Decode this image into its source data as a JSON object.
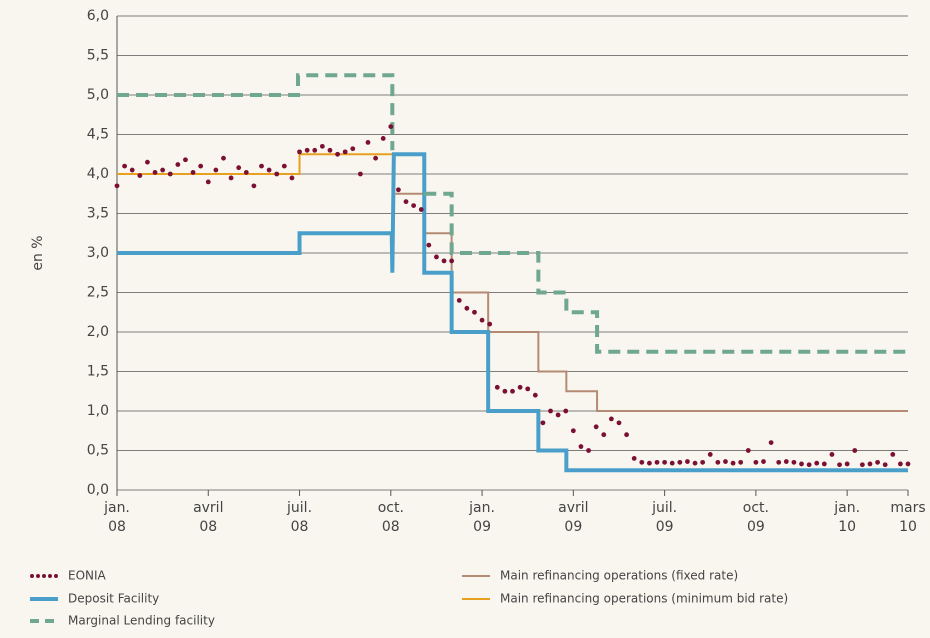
{
  "chart_data": {
    "type": "line",
    "ylabel": "en %",
    "xlim": [
      0,
      26
    ],
    "xticks": [
      {
        "value": 0,
        "label": [
          "jan.",
          "08"
        ]
      },
      {
        "value": 3,
        "label": [
          "avril",
          "08"
        ]
      },
      {
        "value": 6,
        "label": [
          "juil.",
          "08"
        ]
      },
      {
        "value": 9,
        "label": [
          "oct.",
          "08"
        ]
      },
      {
        "value": 12,
        "label": [
          "jan.",
          "09"
        ]
      },
      {
        "value": 15,
        "label": [
          "avril",
          "09"
        ]
      },
      {
        "value": 18,
        "label": [
          "juil.",
          "09"
        ]
      },
      {
        "value": 21,
        "label": [
          "oct.",
          "09"
        ]
      },
      {
        "value": 24,
        "label": [
          "jan.",
          "10"
        ]
      },
      {
        "value": 26,
        "label": [
          "mars",
          "10"
        ]
      }
    ],
    "ylim": [
      0,
      6
    ],
    "yticks": [
      {
        "value": 0,
        "label": "0,0"
      },
      {
        "value": 0.5,
        "label": "0,5"
      },
      {
        "value": 1,
        "label": "1,0"
      },
      {
        "value": 1.5,
        "label": "1,5"
      },
      {
        "value": 2,
        "label": "2,0"
      },
      {
        "value": 2.5,
        "label": "2,5"
      },
      {
        "value": 3,
        "label": "3,0"
      },
      {
        "value": 3.5,
        "label": "3,5"
      },
      {
        "value": 4,
        "label": "4,0"
      },
      {
        "value": 4.5,
        "label": "4,5"
      },
      {
        "value": 5,
        "label": "5,0"
      },
      {
        "value": 5.5,
        "label": "5,5"
      },
      {
        "value": 6,
        "label": "6,0"
      }
    ],
    "grid": true,
    "series": [
      {
        "name": "EONIA",
        "color": "#7b1034",
        "style": "dotted",
        "x": [
          0,
          0.25,
          0.5,
          0.75,
          1,
          1.25,
          1.5,
          1.75,
          2,
          2.25,
          2.5,
          2.75,
          3,
          3.25,
          3.5,
          3.75,
          4,
          4.25,
          4.5,
          4.75,
          5,
          5.25,
          5.5,
          5.75,
          6,
          6.25,
          6.5,
          6.75,
          7,
          7.25,
          7.5,
          7.75,
          8,
          8.25,
          8.5,
          8.75,
          9,
          9.25,
          9.5,
          9.75,
          10,
          10.25,
          10.5,
          10.75,
          11,
          11.25,
          11.5,
          11.75,
          12,
          12.25,
          12.5,
          12.75,
          13,
          13.25,
          13.5,
          13.75,
          14,
          14.25,
          14.5,
          14.75,
          15,
          15.25,
          15.5,
          15.75,
          16,
          16.25,
          16.5,
          16.75,
          17,
          17.25,
          17.5,
          17.75,
          18,
          18.25,
          18.5,
          18.75,
          19,
          19.25,
          19.5,
          19.75,
          20,
          20.25,
          20.5,
          20.75,
          21,
          21.25,
          21.5,
          21.75,
          22,
          22.25,
          22.5,
          22.75,
          23,
          23.25,
          23.5,
          23.75,
          24,
          24.25,
          24.5,
          24.75,
          25,
          25.25,
          25.5,
          25.75,
          26
        ],
        "values": [
          3.85,
          4.1,
          4.05,
          3.98,
          4.15,
          4.02,
          4.05,
          4.0,
          4.12,
          4.18,
          4.02,
          4.1,
          3.9,
          4.05,
          4.2,
          3.95,
          4.08,
          4.02,
          3.85,
          4.1,
          4.05,
          4.0,
          4.1,
          3.95,
          4.28,
          4.3,
          4.3,
          4.35,
          4.3,
          4.25,
          4.28,
          4.32,
          4.0,
          4.4,
          4.2,
          4.45,
          4.6,
          3.8,
          3.65,
          3.6,
          3.55,
          3.1,
          2.95,
          2.9,
          2.9,
          2.4,
          2.3,
          2.25,
          2.15,
          2.1,
          1.3,
          1.25,
          1.25,
          1.3,
          1.28,
          1.2,
          0.85,
          1.0,
          0.95,
          1.0,
          0.75,
          0.55,
          0.5,
          0.8,
          0.7,
          0.9,
          0.85,
          0.7,
          0.4,
          0.35,
          0.34,
          0.35,
          0.35,
          0.34,
          0.35,
          0.36,
          0.34,
          0.35,
          0.45,
          0.35,
          0.36,
          0.34,
          0.35,
          0.5,
          0.35,
          0.36,
          0.6,
          0.35,
          0.36,
          0.35,
          0.33,
          0.32,
          0.34,
          0.33,
          0.45,
          0.32,
          0.33,
          0.5,
          0.32,
          0.33,
          0.35,
          0.32,
          0.45,
          0.33,
          0.33
        ]
      },
      {
        "name": "Deposit Facility",
        "color": "#4a9fca",
        "style": "solid",
        "x": [
          0,
          6,
          6,
          9.03,
          9.05,
          9.1,
          10.1,
          10.1,
          11,
          11,
          12.2,
          12.2,
          13.85,
          13.85,
          14.77,
          14.77,
          26
        ],
        "values": [
          3,
          3,
          3.25,
          3.25,
          2.75,
          4.25,
          4.25,
          2.75,
          2.75,
          2,
          2,
          1,
          1,
          0.5,
          0.5,
          0.25,
          0.25
        ]
      },
      {
        "name": "Marginal Lending facility",
        "color": "#6fa88f",
        "style": "dashed",
        "x": [
          0,
          5.95,
          5.95,
          9.05,
          9.05,
          9.5,
          10.1,
          11,
          11,
          13.85,
          13.85,
          14.77,
          14.77,
          15.78,
          15.78,
          26
        ],
        "values": [
          5,
          5,
          5.25,
          5.25,
          4.3,
          null,
          3.75,
          3.75,
          3,
          3,
          2.5,
          2.5,
          2.25,
          2.25,
          1.75,
          1.75
        ]
      },
      {
        "name": "Main refinancing operations (fixed rate)",
        "color": "#b58a75",
        "style": "thin",
        "x": [
          9.15,
          10.1,
          10.1,
          11,
          11,
          12.2,
          12.2,
          13.85,
          13.85,
          14.77,
          14.77,
          15.78,
          15.78,
          26
        ],
        "values": [
          3.75,
          3.75,
          3.25,
          3.25,
          2.5,
          2.5,
          2,
          2,
          1.5,
          1.5,
          1.25,
          1.25,
          1,
          1
        ]
      },
      {
        "name": "Main refinancing operations (minimum bid rate)",
        "color": "#e8a020",
        "style": "thin",
        "x": [
          0,
          6,
          6,
          9.1
        ],
        "values": [
          4,
          4,
          4.25,
          4.25
        ]
      }
    ]
  }
}
